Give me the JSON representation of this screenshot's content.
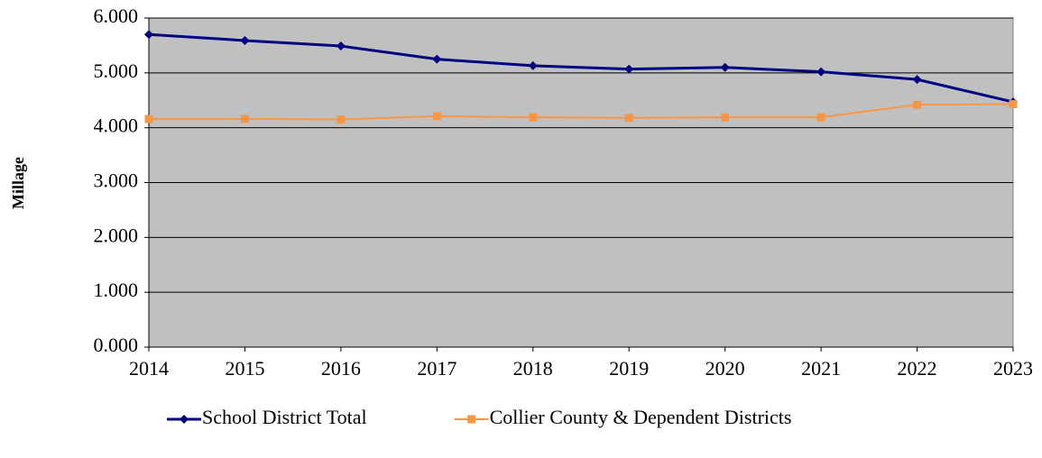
{
  "chart_data": {
    "type": "line",
    "y_axis_label": "Millage",
    "categories": [
      "2014",
      "2015",
      "2016",
      "2017",
      "2018",
      "2019",
      "2020",
      "2021",
      "2022",
      "2023"
    ],
    "series": [
      {
        "name": "School District Total",
        "color": "#000080",
        "marker": "diamond",
        "values": [
          5.7,
          5.59,
          5.49,
          5.25,
          5.13,
          5.07,
          5.1,
          5.02,
          4.88,
          4.47
        ]
      },
      {
        "name": "Collier County & Dependent Districts",
        "color": "#f79646",
        "marker": "square",
        "values": [
          4.16,
          4.16,
          4.15,
          4.21,
          4.19,
          4.18,
          4.19,
          4.19,
          4.42,
          4.43
        ]
      }
    ],
    "ylim": [
      0,
      6
    ],
    "yticks": [
      {
        "value": 0,
        "label": "0.000"
      },
      {
        "value": 1,
        "label": "1.000"
      },
      {
        "value": 2,
        "label": "2.000"
      },
      {
        "value": 3,
        "label": "3.000"
      },
      {
        "value": 4,
        "label": "4.000"
      },
      {
        "value": 5,
        "label": "5.000"
      },
      {
        "value": 6,
        "label": "6.000"
      }
    ],
    "grid": true,
    "plot_background": "#c0c0c0",
    "legend": "bottom"
  }
}
